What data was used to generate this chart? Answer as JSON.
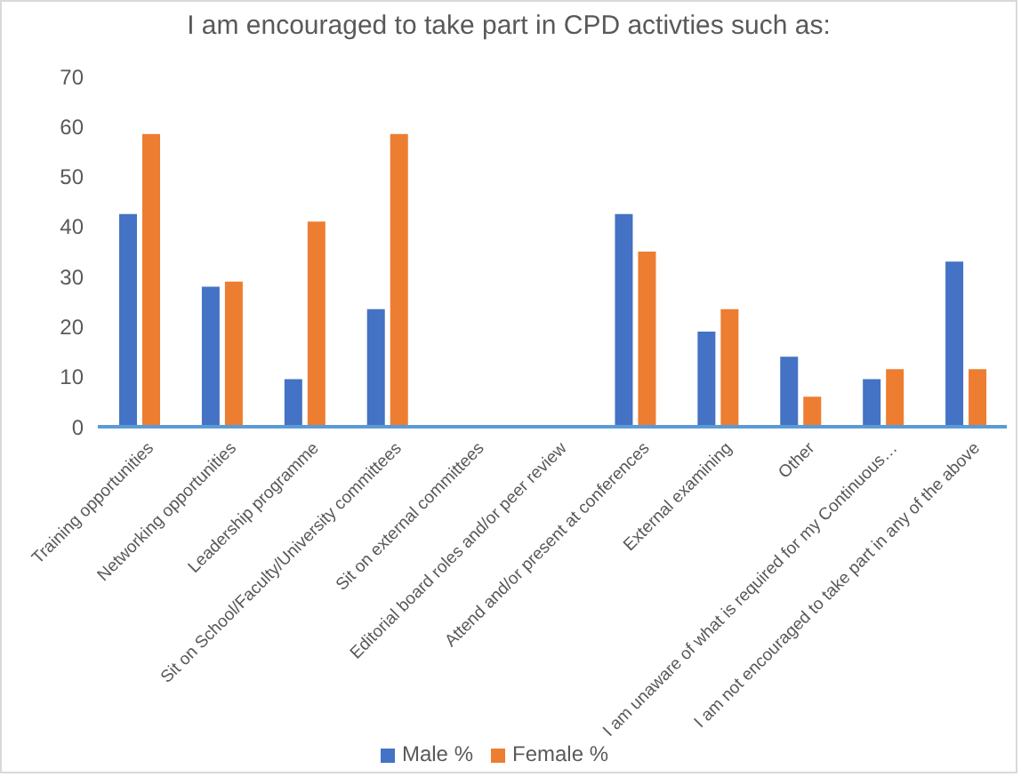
{
  "chart_data": {
    "type": "bar",
    "title": "I am encouraged to take part in CPD activties such as:",
    "categories": [
      "Training opportunities",
      "Networking opportunities",
      "Leadership programme",
      "Sit on School/Faculty/University committees",
      "Sit on external committees",
      "Editorial board roles and/or peer review",
      "Attend and/or present at conferences",
      "External examining",
      "Other",
      "I am unaware of what is required for my Continuous…",
      "I am not encouraged to take part in any of the above"
    ],
    "series": [
      {
        "name": "Male %",
        "color": "#4472c4",
        "values": [
          42.5,
          28,
          9.5,
          23.5,
          0,
          0,
          42.5,
          19,
          14,
          9.5,
          33
        ]
      },
      {
        "name": "Female %",
        "color": "#ed7d31",
        "values": [
          58.5,
          29,
          41,
          58.5,
          0,
          0,
          35,
          23.5,
          6,
          11.5,
          11.5
        ]
      }
    ],
    "ylim": [
      0,
      70
    ],
    "yticks": [
      0,
      10,
      20,
      30,
      40,
      50,
      60,
      70
    ],
    "legend": "bottom"
  }
}
